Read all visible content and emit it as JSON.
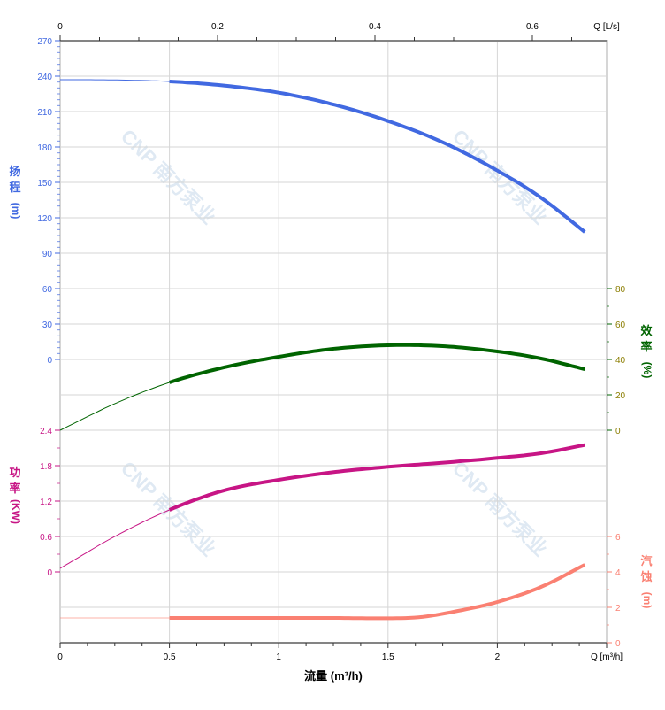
{
  "chart_data": {
    "type": "line",
    "grid": true,
    "watermark": "CNP 南方泵业",
    "x_axis": {
      "label": "流量 (m³/h)",
      "unit_label": "Q [m³/h]",
      "range": [
        0,
        2.5
      ],
      "ticks": [
        "0",
        "0.5",
        "1",
        "1.5",
        "2"
      ]
    },
    "x2_axis": {
      "unit_label": "Q [L/s]",
      "range": [
        0,
        0.6944
      ],
      "ticks": [
        "0",
        "0.2",
        "0.4",
        "0.6"
      ]
    },
    "axes": {
      "head": {
        "label_chars": [
          "扬",
          "程",
          "(m)"
        ],
        "color": "#4169e1",
        "range": [
          0,
          270
        ],
        "ticks": [
          "0",
          "30",
          "60",
          "90",
          "120",
          "150",
          "180",
          "210",
          "240",
          "270"
        ],
        "side": "left"
      },
      "power": {
        "label_chars": [
          "功",
          "率",
          "(KW)"
        ],
        "color": "#c71585",
        "range": [
          0,
          2.4
        ],
        "ticks": [
          "0",
          "0.6",
          "1.2",
          "1.8",
          "2.4"
        ],
        "side": "left"
      },
      "efficiency": {
        "label_chars": [
          "效",
          "率",
          "(%)"
        ],
        "color": "#006400",
        "range": [
          0,
          80
        ],
        "ticks": [
          "0",
          "20",
          "40",
          "60",
          "80"
        ],
        "side": "right"
      },
      "npsh": {
        "label_chars": [
          "汽",
          "蚀",
          "(m)"
        ],
        "color": "#fa8072",
        "range": [
          0,
          6
        ],
        "ticks": [
          "0",
          "2",
          "4",
          "6"
        ],
        "side": "right"
      }
    },
    "series": [
      {
        "axis": "head",
        "color": "#4169e1",
        "x": [
          0,
          0.25,
          0.5,
          0.75,
          1,
          1.25,
          1.5,
          1.75,
          2,
          2.2,
          2.4
        ],
        "y": [
          237,
          236.8,
          235.5,
          232,
          226,
          216,
          202,
          184,
          160,
          137,
          108
        ]
      },
      {
        "axis": "efficiency",
        "color": "#006400",
        "x": [
          0,
          0.25,
          0.5,
          0.75,
          1,
          1.25,
          1.5,
          1.75,
          2,
          2.2,
          2.4
        ],
        "y": [
          0,
          15,
          27,
          35.5,
          41.5,
          46,
          48,
          47.5,
          44.5,
          40.5,
          34.5
        ]
      },
      {
        "axis": "power",
        "color": "#c71585",
        "x": [
          0,
          0.25,
          0.5,
          0.75,
          1,
          1.25,
          1.5,
          1.75,
          2,
          2.2,
          2.4
        ],
        "y": [
          0.06,
          0.6,
          1.05,
          1.38,
          1.56,
          1.69,
          1.78,
          1.85,
          1.93,
          2.01,
          2.15
        ]
      },
      {
        "axis": "npsh",
        "color": "#fa8072",
        "x": [
          0,
          0.25,
          0.5,
          0.75,
          1,
          1.25,
          1.5,
          1.65,
          1.8,
          2,
          2.2,
          2.4
        ],
        "y": [
          1.4,
          1.4,
          1.4,
          1.4,
          1.4,
          1.4,
          1.38,
          1.45,
          1.75,
          2.3,
          3.15,
          4.4
        ]
      }
    ],
    "thin_until_x": 0.5
  }
}
